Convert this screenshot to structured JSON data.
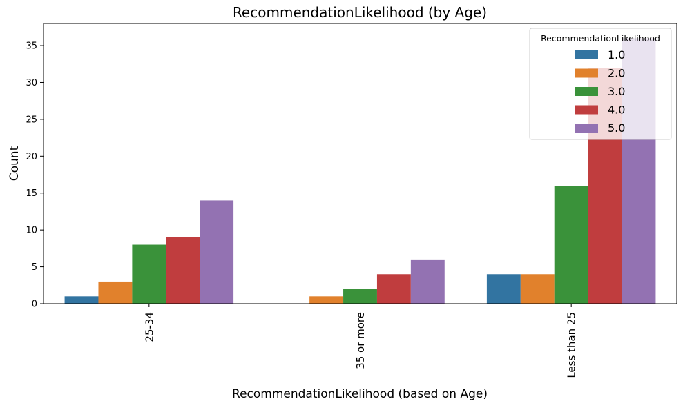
{
  "chart_data": {
    "type": "bar",
    "title": "RecommendationLikelihood (by Age)",
    "xlabel": "RecommendationLikelihood (based on Age)",
    "ylabel": "Count",
    "categories": [
      "25-34",
      "35 or more",
      "Less than 25"
    ],
    "ylim": [
      0,
      38
    ],
    "yticks": [
      0,
      5,
      10,
      15,
      20,
      25,
      30,
      35
    ],
    "grid": false,
    "legend": {
      "title": "RecommendationLikelihood",
      "placement": "top-right"
    },
    "series": [
      {
        "name": "1.0",
        "color": "#3274a1",
        "values": [
          1,
          0,
          4
        ]
      },
      {
        "name": "2.0",
        "color": "#e1812c",
        "values": [
          3,
          1,
          4
        ]
      },
      {
        "name": "3.0",
        "color": "#3a923a",
        "values": [
          8,
          2,
          16
        ]
      },
      {
        "name": "4.0",
        "color": "#c03d3e",
        "values": [
          9,
          4,
          32
        ]
      },
      {
        "name": "5.0",
        "color": "#9372b2",
        "values": [
          14,
          6,
          36
        ]
      }
    ]
  }
}
